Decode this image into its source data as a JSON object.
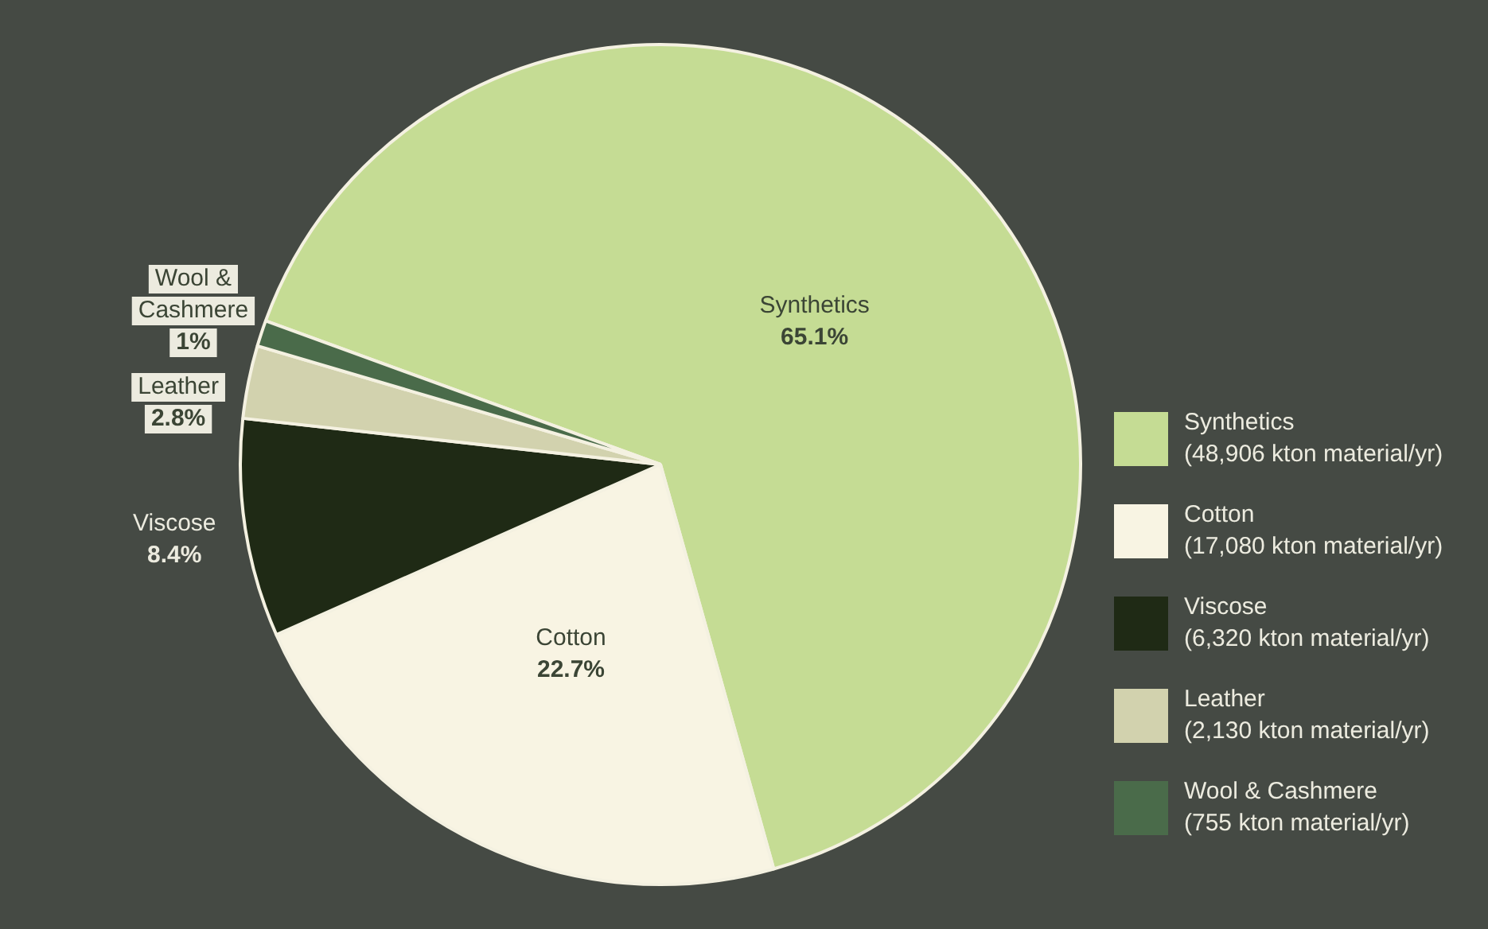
{
  "chart_data": {
    "type": "pie",
    "categories": [
      "Synthetics",
      "Cotton",
      "Viscose",
      "Leather",
      "Wool & Cashmere"
    ],
    "values": [
      65.1,
      22.7,
      8.4,
      2.8,
      1
    ],
    "value_labels": [
      "65.1%",
      "22.7%",
      "8.4%",
      "2.8%",
      "1%"
    ],
    "colors": [
      "#c5dc94",
      "#f8f4e3",
      "#1f2a15",
      "#d2d2ae",
      "#4a6b4a"
    ],
    "annotations": [
      "(48,906 kton material/yr)",
      "(17,080 kton material/yr)",
      "(6,320 kton material/yr)",
      "(2,130 kton material/yr)",
      "(755 kton material/yr)"
    ],
    "legend": "right"
  }
}
